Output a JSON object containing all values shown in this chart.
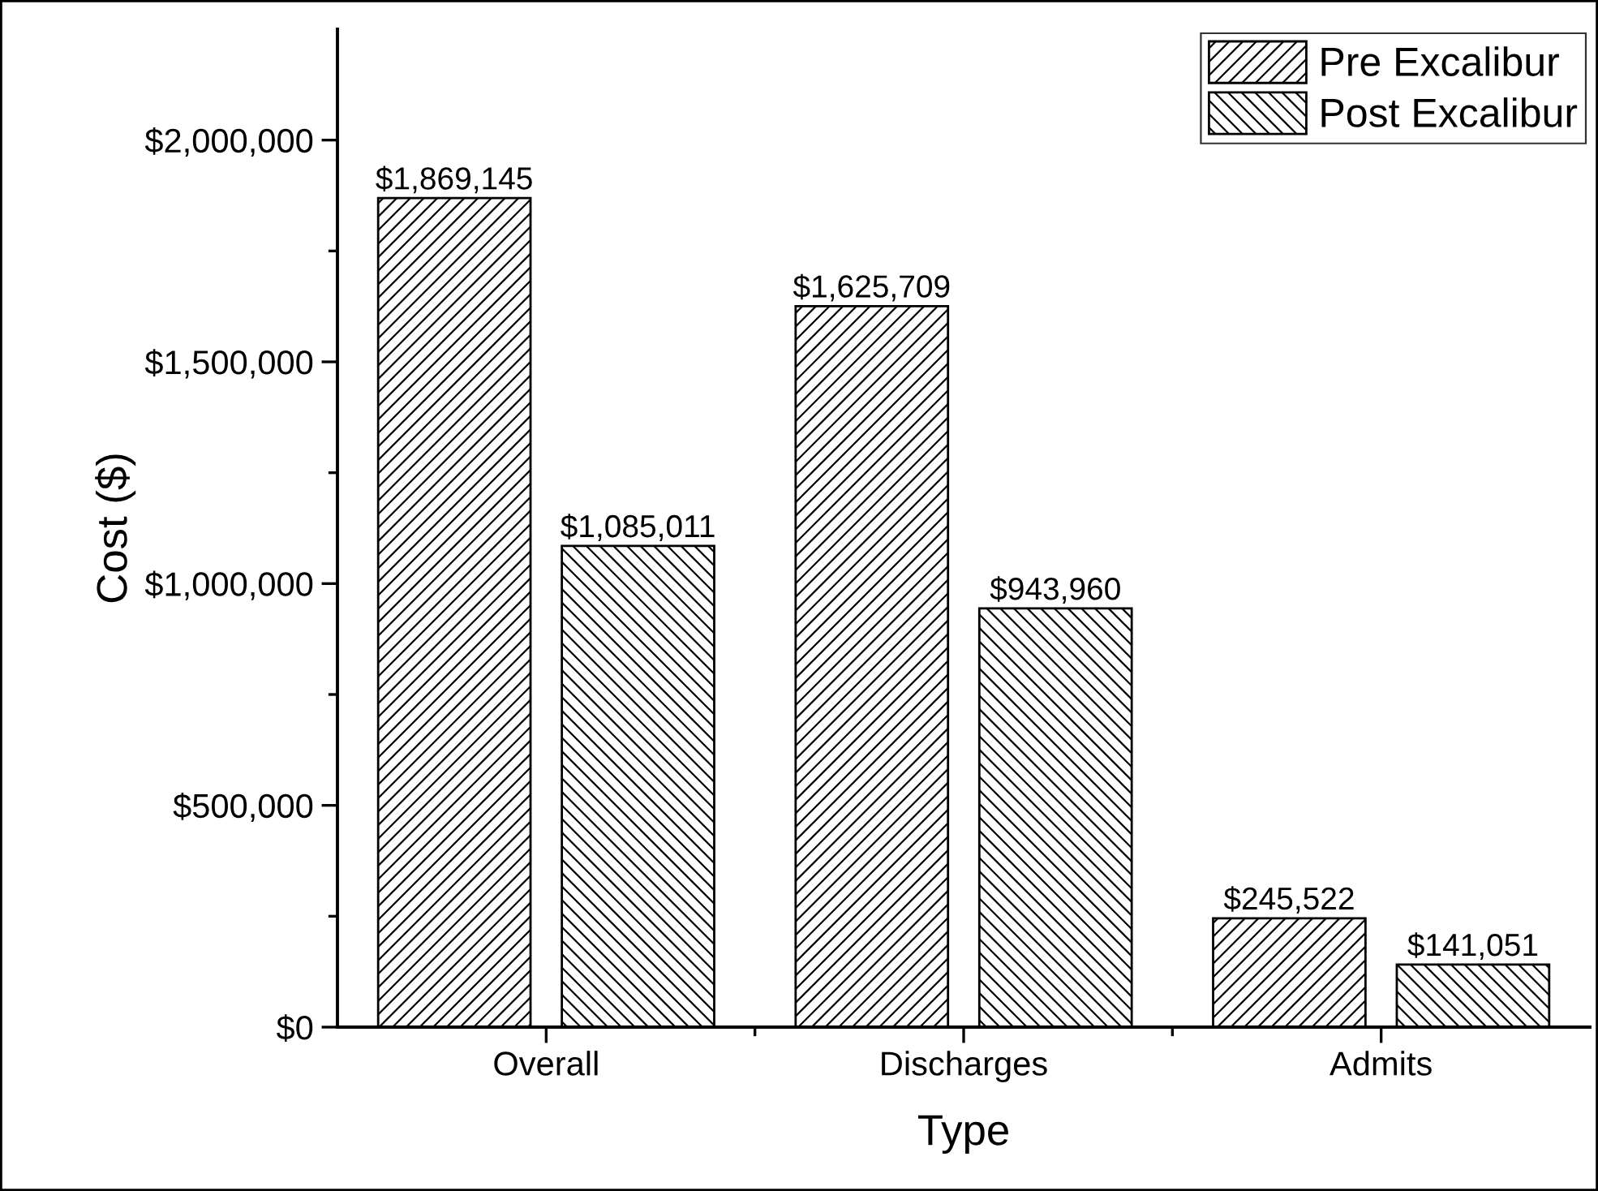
{
  "chart_data": {
    "type": "bar",
    "xlabel": "Type",
    "ylabel": "Cost ($)",
    "categories": [
      "Overall",
      "Discharges",
      "Admits"
    ],
    "series": [
      {
        "name": "Pre Excalibur",
        "color": "#000000",
        "values": [
          1869145,
          1625709,
          245522
        ],
        "value_labels": [
          "$1,869,145",
          "$1,625,709",
          "$245,522"
        ]
      },
      {
        "name": "Post Excalibur",
        "color": "#000000",
        "values": [
          1085011,
          943960,
          141051
        ],
        "value_labels": [
          "$1,085,011",
          "$943,960",
          "$141,051"
        ]
      }
    ],
    "ylim": [
      0,
      2250000
    ],
    "yticks": [
      {
        "value": 0,
        "label": "$0"
      },
      {
        "value": 250000,
        "label": null
      },
      {
        "value": 500000,
        "label": "$500,000"
      },
      {
        "value": 750000,
        "label": null
      },
      {
        "value": 1000000,
        "label": "$1,000,000"
      },
      {
        "value": 1250000,
        "label": null
      },
      {
        "value": 1500000,
        "label": "$1,500,000"
      },
      {
        "value": 1750000,
        "label": null
      },
      {
        "value": 2000000,
        "label": "$2,000,000"
      }
    ],
    "grid": false,
    "legend": "top right"
  }
}
